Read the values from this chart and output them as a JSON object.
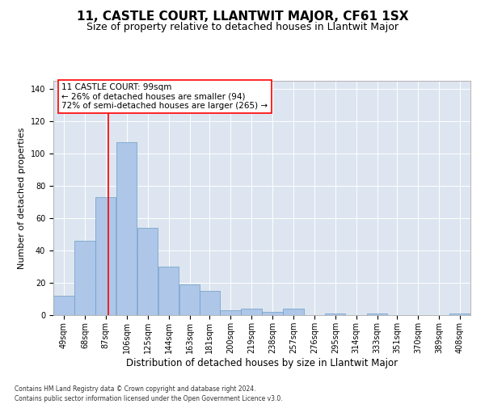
{
  "title": "11, CASTLE COURT, LLANTWIT MAJOR, CF61 1SX",
  "subtitle": "Size of property relative to detached houses in Llantwit Major",
  "xlabel": "Distribution of detached houses by size in Llantwit Major",
  "ylabel": "Number of detached properties",
  "footnote1": "Contains HM Land Registry data © Crown copyright and database right 2024.",
  "footnote2": "Contains public sector information licensed under the Open Government Licence v3.0.",
  "annotation_line1": "11 CASTLE COURT: 99sqm",
  "annotation_line2": "← 26% of detached houses are smaller (94)",
  "annotation_line3": "72% of semi-detached houses are larger (265) →",
  "bar_color": "#aec6e8",
  "bar_edge_color": "#6a9dc8",
  "background_color": "#dde5f0",
  "vline_color": "red",
  "vline_x": 99,
  "bins": [
    49,
    68,
    87,
    106,
    125,
    144,
    163,
    181,
    200,
    219,
    238,
    257,
    276,
    295,
    314,
    333,
    351,
    370,
    389,
    408,
    427
  ],
  "counts": [
    12,
    46,
    73,
    107,
    54,
    30,
    19,
    15,
    3,
    4,
    2,
    4,
    0,
    1,
    0,
    1,
    0,
    0,
    0,
    1
  ],
  "ylim": [
    0,
    145
  ],
  "yticks": [
    0,
    20,
    40,
    60,
    80,
    100,
    120,
    140
  ],
  "title_fontsize": 11,
  "subtitle_fontsize": 9,
  "xlabel_fontsize": 8.5,
  "ylabel_fontsize": 8,
  "tick_fontsize": 7,
  "annotation_fontsize": 7.5,
  "footnote_fontsize": 5.5
}
